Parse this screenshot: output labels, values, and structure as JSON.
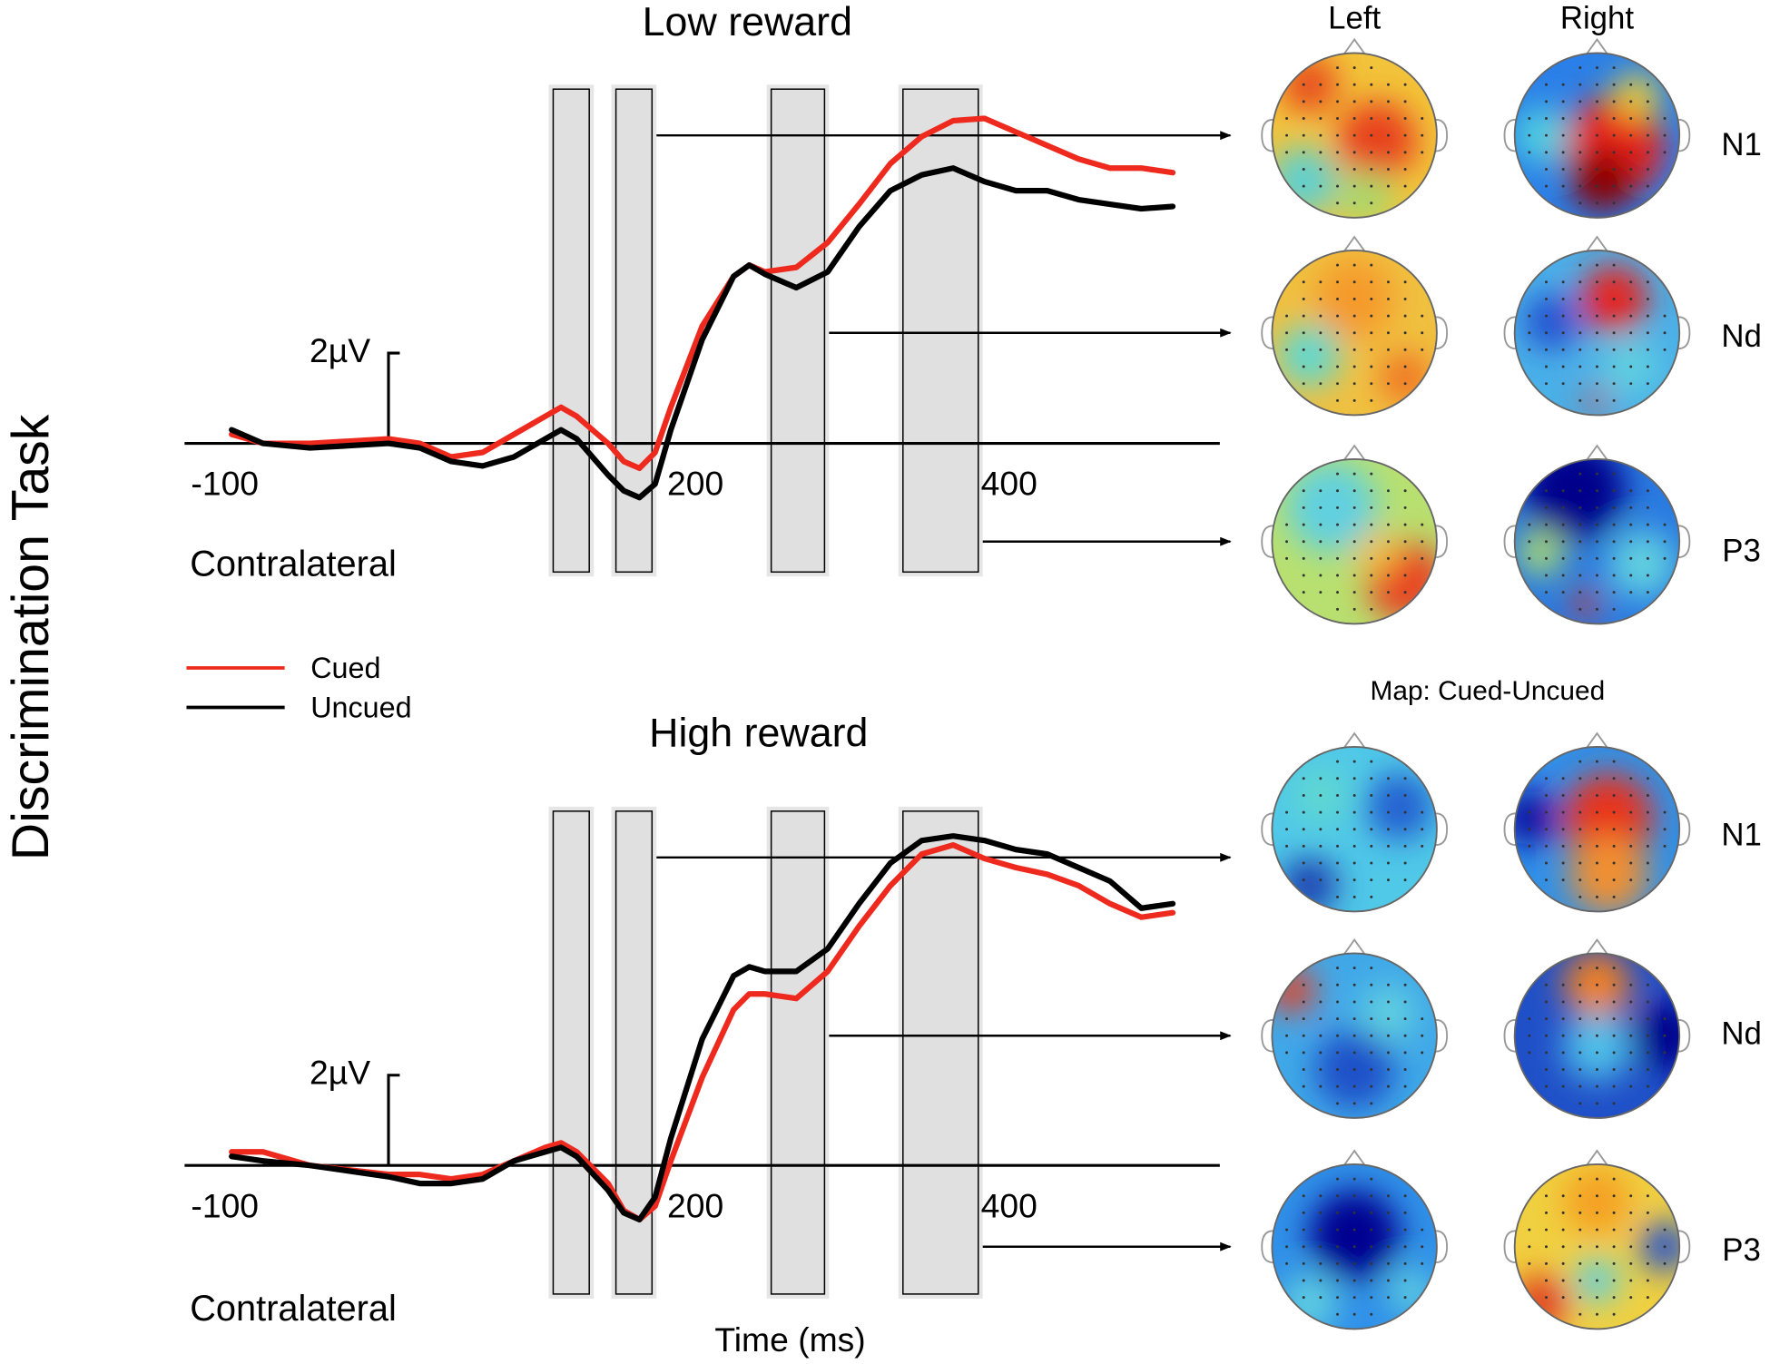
{
  "title": "Discrimination Task",
  "maps": {
    "title": "Map: Cued-Uncued",
    "columns": [
      "Left",
      "Right"
    ],
    "rows": [
      "N1",
      "Nd",
      "P3"
    ]
  },
  "chart_data": [
    {
      "type": "line",
      "title": "Low reward",
      "annotation": "Contralateral",
      "scale_bar": {
        "value": 2,
        "label": "2µV"
      },
      "x": [
        -100,
        -80,
        -50,
        0,
        20,
        40,
        60,
        80,
        100,
        110,
        120,
        140,
        150,
        160,
        170,
        180,
        200,
        220,
        230,
        240,
        260,
        280,
        300,
        320,
        340,
        360,
        380,
        400,
        420,
        440,
        460,
        480,
        500
      ],
      "series": [
        {
          "name": "Cued",
          "color": "#ee2a1f",
          "values": [
            0.2,
            0,
            0,
            0.1,
            0,
            -0.3,
            -0.2,
            0.2,
            0.6,
            0.8,
            0.6,
            0,
            -0.4,
            -0.55,
            -0.2,
            0.8,
            2.6,
            3.7,
            3.95,
            3.8,
            3.9,
            4.45,
            5.3,
            6.2,
            6.8,
            7.15,
            7.2,
            6.9,
            6.6,
            6.3,
            6.1,
            6.1,
            6.0
          ]
        },
        {
          "name": "Uncued",
          "color": "#000000",
          "values": [
            0.3,
            0,
            -0.1,
            0,
            -0.1,
            -0.4,
            -0.5,
            -0.3,
            0.1,
            0.3,
            0.1,
            -0.7,
            -1.05,
            -1.2,
            -0.9,
            0.3,
            2.3,
            3.7,
            3.95,
            3.75,
            3.45,
            3.8,
            4.8,
            5.6,
            5.95,
            6.1,
            5.8,
            5.6,
            5.6,
            5.4,
            5.3,
            5.2,
            5.25
          ]
        }
      ],
      "xlim": [
        -130,
        530
      ],
      "ylim": [
        -3,
        8
      ],
      "xticks": [
        -100,
        200,
        400
      ],
      "windows": [
        [
          105,
          128
        ],
        [
          145,
          168
        ],
        [
          244,
          278
        ],
        [
          328,
          376
        ]
      ]
    },
    {
      "type": "line",
      "title": "High reward",
      "annotation": "Contralateral",
      "xlabel": "Time (ms)",
      "scale_bar": {
        "value": 2,
        "label": "2µV"
      },
      "x": [
        -100,
        -80,
        -50,
        0,
        20,
        40,
        60,
        80,
        100,
        110,
        120,
        140,
        150,
        160,
        170,
        180,
        200,
        220,
        230,
        240,
        260,
        280,
        300,
        320,
        340,
        360,
        380,
        400,
        420,
        440,
        460,
        480,
        500
      ],
      "series": [
        {
          "color": "#ee2a1f",
          "values": [
            0.3,
            0.3,
            0,
            -0.2,
            -0.2,
            -0.3,
            -0.2,
            0.1,
            0.4,
            0.5,
            0.3,
            -0.4,
            -1.0,
            -1.2,
            -0.9,
            0.1,
            1.95,
            3.45,
            3.8,
            3.8,
            3.7,
            4.3,
            5.3,
            6.2,
            6.9,
            7.1,
            6.8,
            6.6,
            6.45,
            6.2,
            5.8,
            5.5,
            5.6
          ]
        },
        {
          "color": "#000000",
          "values": [
            0.2,
            0.1,
            0,
            -0.25,
            -0.4,
            -0.4,
            -0.3,
            0.1,
            0.3,
            0.4,
            0.2,
            -0.55,
            -1.05,
            -1.2,
            -0.7,
            0.6,
            2.8,
            4.2,
            4.4,
            4.3,
            4.3,
            4.8,
            5.8,
            6.7,
            7.2,
            7.3,
            7.2,
            7.0,
            6.9,
            6.6,
            6.3,
            5.7,
            5.8
          ]
        }
      ],
      "xlim": [
        -130,
        530
      ],
      "ylim": [
        -3,
        8
      ],
      "xticks": [
        -100,
        200,
        400
      ],
      "windows": [
        [
          105,
          128
        ],
        [
          145,
          168
        ],
        [
          244,
          278
        ],
        [
          328,
          376
        ]
      ]
    }
  ]
}
